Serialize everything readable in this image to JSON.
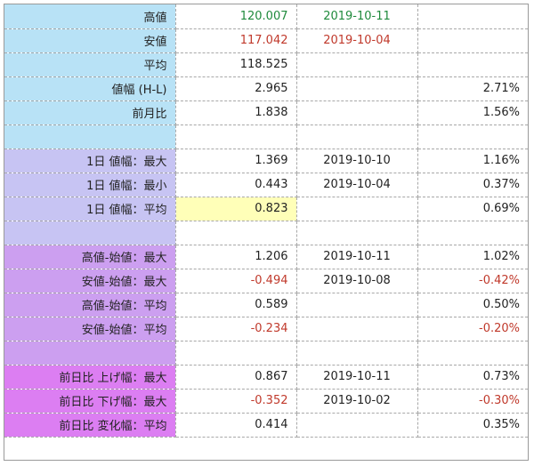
{
  "rows": [
    {
      "label": "高値",
      "value": "120.007",
      "date": "2019-10-11",
      "pct": ""
    },
    {
      "label": "安値",
      "value": "117.042",
      "date": "2019-10-04",
      "pct": ""
    },
    {
      "label": "平均",
      "value": "118.525",
      "date": "",
      "pct": ""
    },
    {
      "label": "値幅 (H-L)",
      "value": "2.965",
      "date": "",
      "pct": "2.71%"
    },
    {
      "label": "前月比",
      "value": "1.838",
      "date": "",
      "pct": "1.56%"
    },
    {
      "label": "",
      "value": "",
      "date": "",
      "pct": ""
    },
    {
      "label": "1日 値幅：最大",
      "value": "1.369",
      "date": "2019-10-10",
      "pct": "1.16%"
    },
    {
      "label": "1日 値幅：最小",
      "value": "0.443",
      "date": "2019-10-04",
      "pct": "0.37%"
    },
    {
      "label": "1日 値幅：平均",
      "value": "0.823",
      "date": "",
      "pct": "0.69%"
    },
    {
      "label": "",
      "value": "",
      "date": "",
      "pct": ""
    },
    {
      "label": "高値-始値：最大",
      "value": "1.206",
      "date": "2019-10-11",
      "pct": "1.02%"
    },
    {
      "label": "安値-始値：最大",
      "value": "-0.494",
      "date": "2019-10-08",
      "pct": "-0.42%"
    },
    {
      "label": "高値-始値：平均",
      "value": "0.589",
      "date": "",
      "pct": "0.50%"
    },
    {
      "label": "安値-始値：平均",
      "value": "-0.234",
      "date": "",
      "pct": "-0.20%"
    },
    {
      "label": "",
      "value": "",
      "date": "",
      "pct": ""
    },
    {
      "label": "前日比 上げ幅：最大",
      "value": "0.867",
      "date": "2019-10-11",
      "pct": "0.73%"
    },
    {
      "label": "前日比 下げ幅：最大",
      "value": "-0.352",
      "date": "2019-10-02",
      "pct": "-0.30%"
    },
    {
      "label": "前日比 変化幅：平均",
      "value": "0.414",
      "date": "",
      "pct": "0.35%"
    }
  ],
  "colors": {
    "section1": "#b8e2f6",
    "section2": "#c7c4f3",
    "section3": "#cc9ff0",
    "section4": "#dc7ef2",
    "positive_high": "#1f8a3c",
    "negative": "#c0392b",
    "highlight": "#ffffb8"
  }
}
